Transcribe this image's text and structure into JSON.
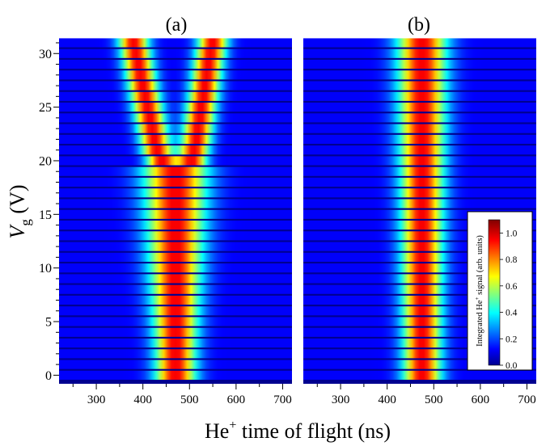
{
  "figure": {
    "xlabel_main": "He",
    "xlabel_sup": "+",
    "xlabel_rest": " time of flight (ns)",
    "ylabel_main": "V",
    "ylabel_sub": "g",
    "ylabel_rest": " (V)"
  },
  "colorbar": {
    "label_pre": "Integrated He",
    "label_sup": "+",
    "label_post": " signal (arb. units)",
    "ticks": [
      "0.0",
      "0.2",
      "0.4",
      "0.6",
      "0.8",
      "1.0"
    ],
    "tick_values": [
      0.0,
      0.2,
      0.4,
      0.6,
      0.8,
      1.0
    ],
    "range": [
      0.0,
      1.1
    ],
    "colormap": "jet"
  },
  "chart_data": [
    {
      "type": "heatmap",
      "title": "(a)",
      "x_ticks": [
        "300",
        "400",
        "500",
        "600",
        "700"
      ],
      "x_tick_values": [
        300,
        400,
        500,
        600,
        700
      ],
      "xlim": [
        220,
        720
      ],
      "y_ticks": [
        "0",
        "5",
        "10",
        "15",
        "20",
        "25",
        "30"
      ],
      "y_tick_values": [
        0,
        5,
        10,
        15,
        20,
        25,
        30
      ],
      "ylim": [
        -0.8,
        31.3
      ],
      "vg_values": [
        0,
        1,
        2,
        3,
        4,
        5,
        6,
        7,
        8,
        9,
        10,
        11,
        12,
        13,
        14,
        15,
        16,
        17,
        18,
        19,
        20,
        21,
        22,
        23,
        24,
        25,
        26,
        27,
        28,
        29,
        30,
        31
      ],
      "peak_centers_ns": [
        [
          470
        ],
        [
          470
        ],
        [
          470
        ],
        [
          470
        ],
        [
          470
        ],
        [
          470
        ],
        [
          470
        ],
        [
          470
        ],
        [
          470
        ],
        [
          470
        ],
        [
          470
        ],
        [
          470
        ],
        [
          470
        ],
        [
          470
        ],
        [
          470
        ],
        [
          470
        ],
        [
          470
        ],
        [
          470
        ],
        [
          470
        ],
        [
          470
        ],
        [
          440,
          505
        ],
        [
          430,
          510
        ],
        [
          425,
          515
        ],
        [
          420,
          518
        ],
        [
          415,
          522
        ],
        [
          410,
          525
        ],
        [
          405,
          530
        ],
        [
          400,
          533
        ],
        [
          395,
          537
        ],
        [
          390,
          540
        ],
        [
          385,
          545
        ],
        [
          380,
          550
        ]
      ],
      "peak_widths_ns": [
        30,
        30,
        30,
        31,
        32,
        33,
        34,
        35,
        36,
        37,
        38,
        39,
        40,
        41,
        42,
        43,
        44,
        45,
        46,
        47,
        22,
        22,
        22,
        22,
        22,
        22,
        22,
        22,
        22,
        22,
        22,
        22
      ]
    },
    {
      "type": "heatmap",
      "title": "(b)",
      "x_ticks": [
        "300",
        "400",
        "500",
        "600",
        "700"
      ],
      "x_tick_values": [
        300,
        400,
        500,
        600,
        700
      ],
      "xlim": [
        220,
        720
      ],
      "y_ticks": [],
      "y_tick_values": [],
      "ylim": [
        -0.8,
        31.3
      ],
      "vg_values": [
        0,
        1,
        2,
        3,
        4,
        5,
        6,
        7,
        8,
        9,
        10,
        11,
        12,
        13,
        14,
        15,
        16,
        17,
        18,
        19,
        20,
        21,
        22,
        23,
        24,
        25,
        26,
        27,
        28,
        29,
        30,
        31
      ],
      "peak_centers_ns": [
        [
          475
        ],
        [
          475
        ],
        [
          475
        ],
        [
          475
        ],
        [
          475
        ],
        [
          475
        ],
        [
          475
        ],
        [
          475
        ],
        [
          475
        ],
        [
          475
        ],
        [
          475
        ],
        [
          475
        ],
        [
          475
        ],
        [
          475
        ],
        [
          475
        ],
        [
          475
        ],
        [
          475
        ],
        [
          475
        ],
        [
          475
        ],
        [
          475
        ],
        [
          475
        ],
        [
          475
        ],
        [
          475
        ],
        [
          475
        ],
        [
          475
        ],
        [
          475
        ],
        [
          475
        ],
        [
          475
        ],
        [
          475
        ],
        [
          475
        ],
        [
          475
        ],
        [
          475
        ]
      ],
      "peak_widths_ns": [
        28,
        28,
        28,
        28,
        28,
        29,
        29,
        29,
        29,
        30,
        30,
        30,
        30,
        31,
        31,
        31,
        31,
        32,
        32,
        32,
        33,
        33,
        33,
        34,
        34,
        34,
        35,
        35,
        35,
        36,
        36,
        36
      ]
    }
  ]
}
